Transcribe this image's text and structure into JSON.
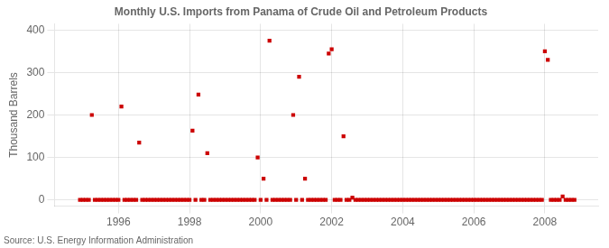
{
  "chart_data": {
    "type": "scatter",
    "title": "Monthly U.S. Imports from Panama of Crude Oil and Petroleum Products",
    "ylabel": "Thousand Barrels",
    "source": "Source: U.S. Energy Information Administration",
    "color": "#cc0000",
    "marker": "square",
    "grid": true,
    "xlim": [
      1994.2,
      2009.5
    ],
    "ylim": [
      -15,
      415
    ],
    "xticks": [
      1996,
      1998,
      2000,
      2002,
      2004,
      2006,
      2008
    ],
    "yticks": [
      0,
      100,
      200,
      300,
      400
    ],
    "x": [
      1994.917,
      1995.0,
      1995.083,
      1995.167,
      1995.25,
      1995.333,
      1995.417,
      1995.5,
      1995.583,
      1995.667,
      1995.75,
      1995.833,
      1995.917,
      1996.0,
      1996.083,
      1996.167,
      1996.25,
      1996.333,
      1996.417,
      1996.5,
      1996.583,
      1996.667,
      1996.75,
      1996.833,
      1996.917,
      1997.0,
      1997.083,
      1997.167,
      1997.25,
      1997.333,
      1997.417,
      1997.5,
      1997.583,
      1997.667,
      1997.75,
      1997.833,
      1997.917,
      1998.0,
      1998.083,
      1998.167,
      1998.25,
      1998.333,
      1998.417,
      1998.5,
      1998.583,
      1998.667,
      1998.75,
      1998.833,
      1998.917,
      1999.0,
      1999.083,
      1999.167,
      1999.25,
      1999.333,
      1999.417,
      1999.5,
      1999.583,
      1999.667,
      1999.75,
      1999.833,
      1999.917,
      2000.0,
      2000.083,
      2000.167,
      2000.25,
      2000.333,
      2000.417,
      2000.5,
      2000.583,
      2000.667,
      2000.75,
      2000.833,
      2000.917,
      2001.0,
      2001.083,
      2001.167,
      2001.25,
      2001.333,
      2001.417,
      2001.5,
      2001.583,
      2001.667,
      2001.75,
      2001.833,
      2001.917,
      2002.0,
      2002.083,
      2002.167,
      2002.25,
      2002.333,
      2002.417,
      2002.5,
      2002.583,
      2002.667,
      2002.75,
      2002.833,
      2002.917,
      2003.0,
      2003.083,
      2003.167,
      2003.25,
      2003.333,
      2003.417,
      2003.5,
      2003.583,
      2003.667,
      2003.75,
      2003.833,
      2003.917,
      2004.0,
      2004.083,
      2004.167,
      2004.25,
      2004.333,
      2004.417,
      2004.5,
      2004.583,
      2004.667,
      2004.75,
      2004.833,
      2004.917,
      2005.0,
      2005.083,
      2005.167,
      2005.25,
      2005.333,
      2005.417,
      2005.5,
      2005.583,
      2005.667,
      2005.75,
      2005.833,
      2005.917,
      2006.0,
      2006.083,
      2006.167,
      2006.25,
      2006.333,
      2006.417,
      2006.5,
      2006.583,
      2006.667,
      2006.75,
      2006.833,
      2006.917,
      2007.0,
      2007.083,
      2007.167,
      2007.25,
      2007.333,
      2007.417,
      2007.5,
      2007.583,
      2007.667,
      2007.75,
      2007.833,
      2007.917,
      2008.0,
      2008.083,
      2008.167,
      2008.25,
      2008.333,
      2008.417,
      2008.5,
      2008.583,
      2008.667,
      2008.75,
      2008.833
    ],
    "values": [
      0,
      0,
      0,
      0,
      200,
      0,
      0,
      0,
      0,
      0,
      0,
      0,
      0,
      0,
      220,
      0,
      0,
      0,
      0,
      0,
      135,
      0,
      0,
      0,
      0,
      0,
      0,
      0,
      0,
      0,
      0,
      0,
      0,
      0,
      0,
      0,
      0,
      0,
      163,
      0,
      248,
      0,
      0,
      110,
      0,
      0,
      0,
      0,
      0,
      0,
      0,
      0,
      0,
      0,
      0,
      0,
      0,
      0,
      0,
      0,
      100,
      0,
      50,
      0,
      375,
      0,
      0,
      0,
      0,
      0,
      0,
      0,
      200,
      0,
      290,
      0,
      50,
      0,
      0,
      0,
      0,
      0,
      0,
      0,
      345,
      355,
      0,
      0,
      0,
      150,
      0,
      0,
      5,
      0,
      0,
      0,
      0,
      0,
      0,
      0,
      0,
      0,
      0,
      0,
      0,
      0,
      0,
      0,
      0,
      0,
      0,
      0,
      0,
      0,
      0,
      0,
      0,
      0,
      0,
      0,
      0,
      0,
      0,
      0,
      0,
      0,
      0,
      0,
      0,
      0,
      0,
      0,
      0,
      0,
      0,
      0,
      0,
      0,
      0,
      0,
      0,
      0,
      0,
      0,
      0,
      0,
      0,
      0,
      0,
      0,
      0,
      0,
      0,
      0,
      0,
      0,
      0,
      350,
      330,
      0,
      0,
      0,
      0,
      8,
      0,
      0,
      0,
      0
    ]
  }
}
